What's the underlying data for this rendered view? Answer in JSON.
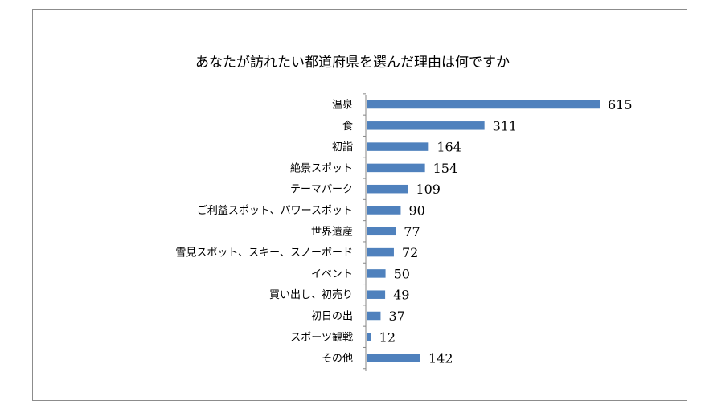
{
  "chart_data": {
    "type": "bar",
    "orientation": "horizontal",
    "title": "あなたが訪れたい都道府県を選んだ理由は何ですか",
    "xlabel": "",
    "ylabel": "",
    "categories": [
      "温泉",
      "食",
      "初詣",
      "絶景スポット",
      "テーマパーク",
      "ご利益スポット、パワースポット",
      "世界遺産",
      "雪見スポット、スキー、スノーボード",
      "イベント",
      "買い出し、初売り",
      "初日の出",
      "スポーツ観戦",
      "その他"
    ],
    "values": [
      615,
      311,
      164,
      154,
      109,
      90,
      77,
      72,
      50,
      49,
      37,
      12,
      142
    ],
    "xlim": [
      0,
      615
    ],
    "grid": false,
    "legend": "none",
    "data_labels": true,
    "bar_color": "#4f81bd"
  }
}
